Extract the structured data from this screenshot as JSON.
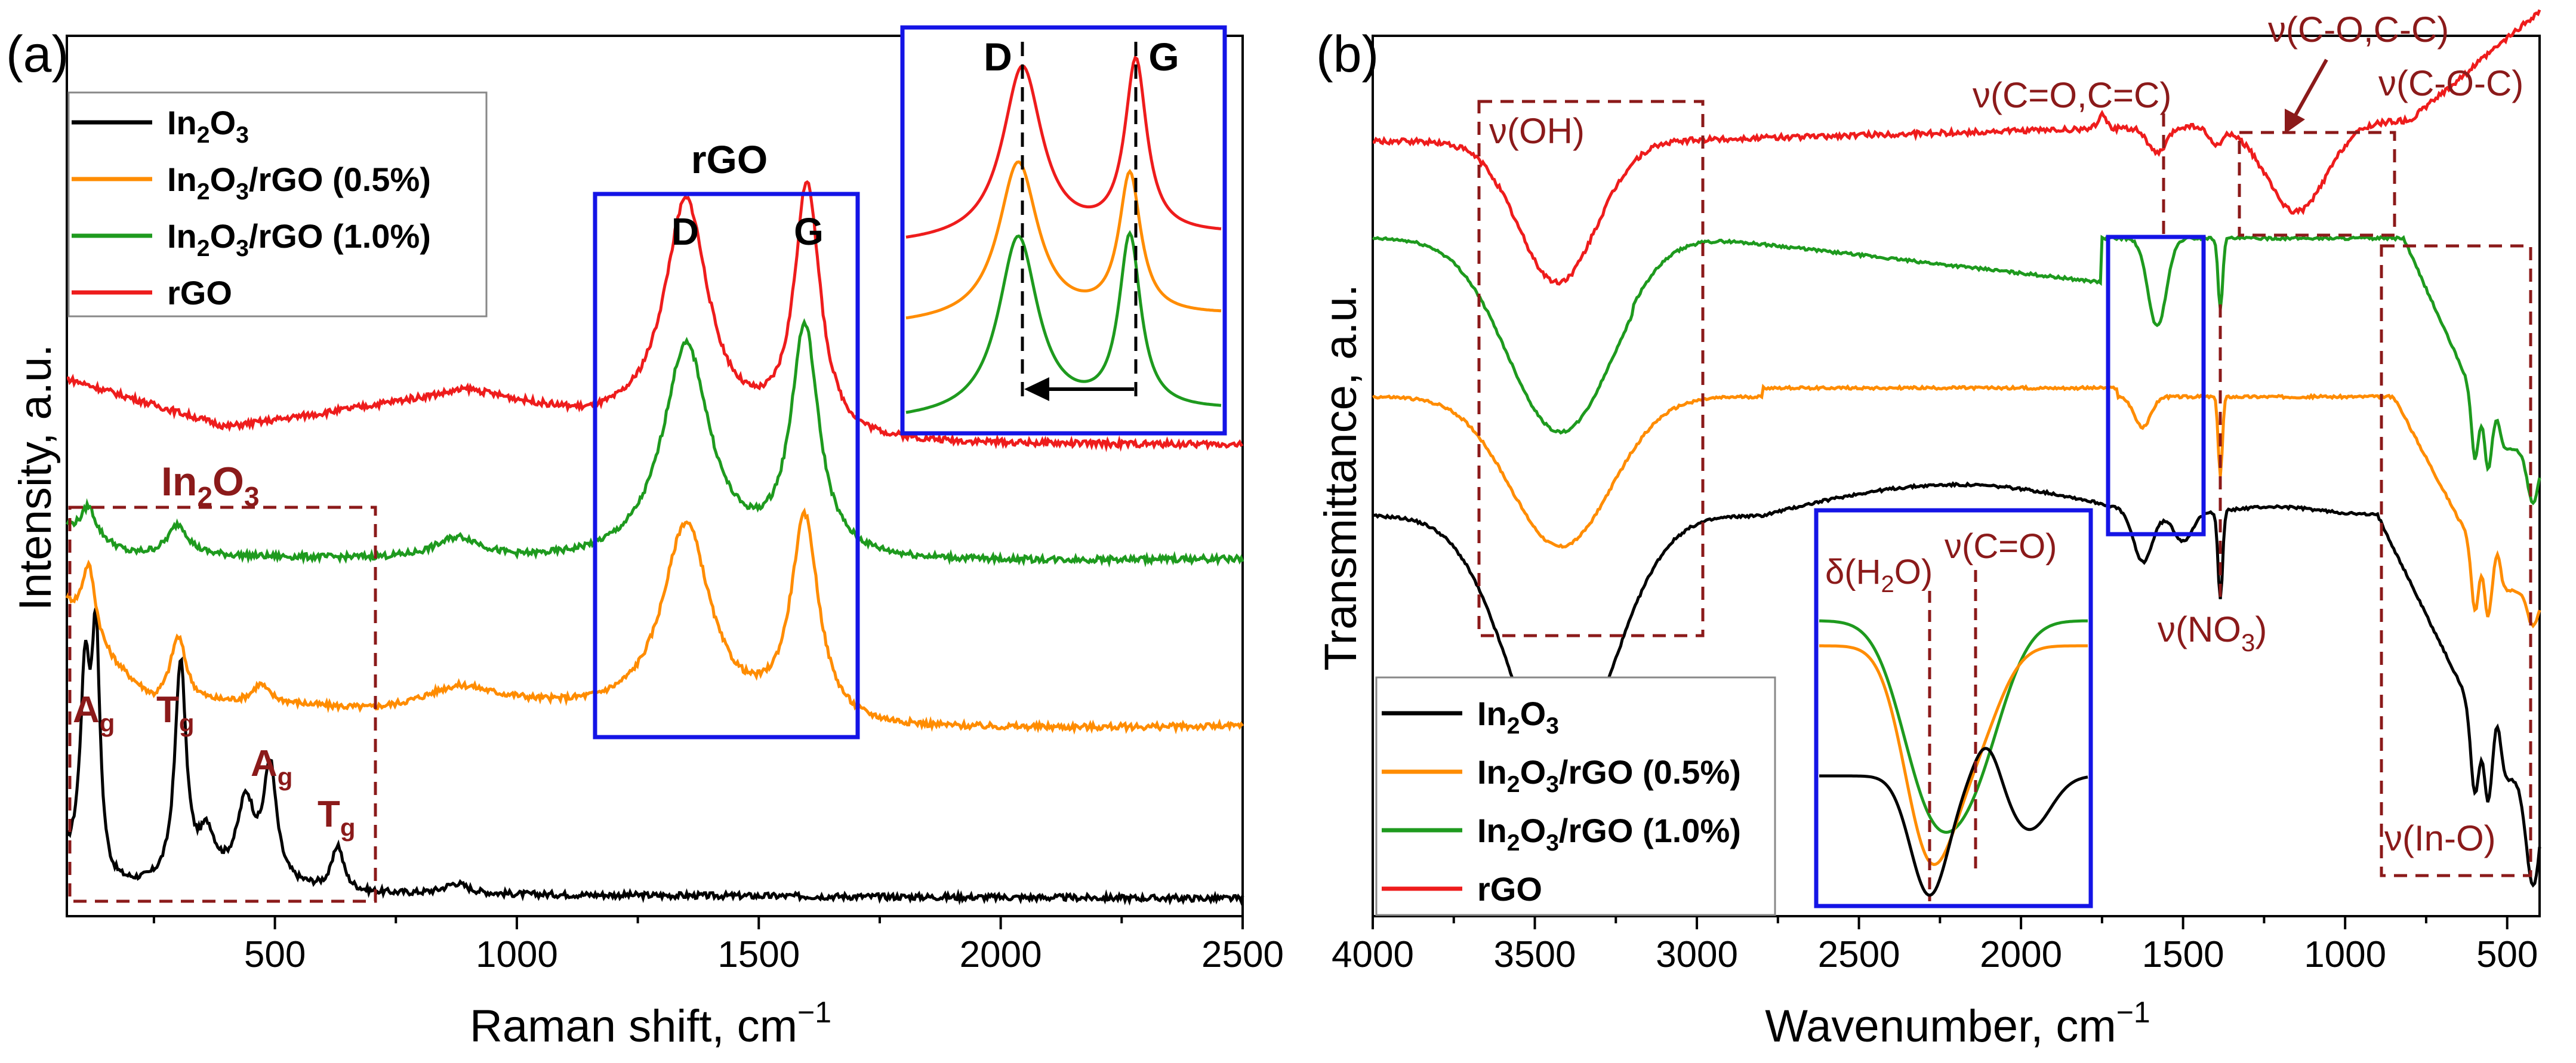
{
  "figure": {
    "colors": {
      "in2o3": "#000000",
      "rgo05": "#FF8C00",
      "rgo10": "#1E9A1E",
      "rgo": "#EE1C1C",
      "box": "#8B1A1A",
      "highlight": "#1414E6"
    }
  },
  "chart_data": [
    {
      "type": "line",
      "panel_label": "(a)",
      "xlabel": "Raman shift, cm",
      "xlabel_sup": "−1",
      "ylabel": "Intensity, a.u.",
      "xlim": [
        70,
        2500
      ],
      "ylim": [
        0,
        10
      ],
      "xticks": [
        500,
        1000,
        1500,
        2000,
        2500
      ],
      "xtick_labels": [
        "500",
        "1000",
        "1500",
        "2000",
        "2500"
      ],
      "legend": {
        "position": "top-left",
        "entries": [
          {
            "base": "In",
            "sub": "2",
            "base2": "O",
            "sub2": "3",
            "rest": ""
          },
          {
            "base": "In",
            "sub": "2",
            "base2": "O",
            "sub2": "3",
            "rest": "/rGO (0.5%)"
          },
          {
            "base": "In",
            "sub": "2",
            "base2": "O",
            "sub2": "3",
            "rest": "/rGO (1.0%)"
          },
          {
            "base": "rGO",
            "sub": "",
            "base2": "",
            "sub2": "",
            "rest": ""
          }
        ]
      },
      "series": [
        {
          "name": "In2O3",
          "color": "#000000",
          "baseline": 0.2,
          "background": [
            [
              70,
              0.6
            ],
            [
              160,
              0.3
            ],
            [
              400,
              0.35
            ],
            [
              700,
              0.25
            ],
            [
              2500,
              0.2
            ]
          ],
          "peaks": [
            [
              108,
              2.2,
              12
            ],
            [
              130,
              2.6,
              10
            ],
            [
              305,
              2.5,
              14
            ],
            [
              360,
              0.5,
              20
            ],
            [
              440,
              0.9,
              22
            ],
            [
              490,
              1.3,
              16
            ],
            [
              630,
              0.5,
              14
            ],
            [
              875,
              0.12,
              30
            ]
          ]
        },
        {
          "name": "In2O3/rGO (0.5%)",
          "color": "#FF8C00",
          "baseline": 2.1,
          "background": [
            [
              70,
              3.5
            ],
            [
              110,
              3.1
            ],
            [
              250,
              2.4
            ],
            [
              500,
              2.4
            ],
            [
              700,
              2.3
            ],
            [
              1000,
              2.35
            ],
            [
              1700,
              2.1
            ],
            [
              2500,
              2.15
            ]
          ],
          "peaks": [
            [
              115,
              0.9,
              18
            ],
            [
              300,
              0.75,
              20
            ],
            [
              470,
              0.2,
              20
            ],
            [
              880,
              0.25,
              90
            ],
            [
              1350,
              2.2,
              60
            ],
            [
              1595,
              2.3,
              35
            ]
          ]
        },
        {
          "name": "In2O3/rGO (1.0%)",
          "color": "#1E9A1E",
          "baseline": 4.1,
          "background": [
            [
              70,
              4.4
            ],
            [
              200,
              4.1
            ],
            [
              600,
              4.05
            ],
            [
              1000,
              4.0
            ],
            [
              1700,
              4.0
            ],
            [
              2500,
              4.05
            ]
          ],
          "peaks": [
            [
              115,
              0.35,
              18
            ],
            [
              300,
              0.35,
              25
            ],
            [
              880,
              0.25,
              60
            ],
            [
              1350,
              2.45,
              60
            ],
            [
              1595,
              2.6,
              35
            ]
          ]
        },
        {
          "name": "rGO",
          "color": "#EE1C1C",
          "baseline": 5.6,
          "background": [
            [
              70,
              6.1
            ],
            [
              400,
              5.55
            ],
            [
              600,
              5.7
            ],
            [
              900,
              5.95
            ],
            [
              1150,
              5.6
            ],
            [
              1700,
              5.35
            ],
            [
              2500,
              5.35
            ]
          ],
          "peaks": [
            [
              1350,
              2.6,
              55
            ],
            [
              1600,
              2.85,
              32
            ]
          ]
        }
      ],
      "annotations": {
        "box_in2o3_title": {
          "base": "In",
          "sub": "2",
          "base2": "O",
          "sub2": "3"
        },
        "peak_labels": [
          {
            "text": "A",
            "sub": "g"
          },
          {
            "text": "T",
            "sub": "g"
          },
          {
            "text": "A",
            "sub": "g"
          },
          {
            "text": "T",
            "sub": "g"
          }
        ],
        "rgo_box_title": "rGO",
        "rgo_box_d": "D",
        "rgo_box_g": "G",
        "inset_d": "D",
        "inset_g": "G"
      }
    },
    {
      "type": "line",
      "panel_label": "(b)",
      "xlabel": "Wavenumber, cm",
      "xlabel_sup": "−1",
      "ylabel": "Transmittance, a.u.",
      "xlim": [
        4000,
        400
      ],
      "ylim": [
        0,
        10
      ],
      "xticks": [
        4000,
        3500,
        3000,
        2500,
        2000,
        1500,
        1000,
        500
      ],
      "xtick_labels": [
        "4000",
        "3500",
        "3000",
        "2500",
        "2000",
        "1500",
        "1000",
        "500"
      ],
      "legend": {
        "position": "bottom-left",
        "entries": [
          {
            "base": "In",
            "sub": "2",
            "base2": "O",
            "sub2": "3",
            "rest": ""
          },
          {
            "base": "In",
            "sub": "2",
            "base2": "O",
            "sub2": "3",
            "rest": "/rGO (0.5%)"
          },
          {
            "base": "In",
            "sub": "2",
            "base2": "O",
            "sub2": "3",
            "rest": "/rGO (1.0%)"
          },
          {
            "base": "rGO",
            "sub": "",
            "base2": "",
            "sub2": "",
            "rest": ""
          }
        ]
      },
      "series": [
        {
          "name": "In2O3",
          "color": "#000000",
          "baseline": 4.6
        },
        {
          "name": "In2O3/rGO (0.5%)",
          "color": "#FF8C00",
          "baseline": 5.9
        },
        {
          "name": "In2O3/rGO (1.0%)",
          "color": "#1E9A1E",
          "baseline": 7.7
        },
        {
          "name": "rGO",
          "color": "#EE1C1C",
          "baseline": 8.8
        }
      ],
      "annotations": {
        "oh": "ν(OH)",
        "co_cc": "ν(C=O,C=C)",
        "coc_top": "ν(C-O,C-C)",
        "coc": "ν(C-O-C)",
        "no3_base": "ν(NO",
        "no3_sub": "3",
        "no3_end": ")",
        "ino": "ν(In-O)",
        "inset_dh2o_base": "δ(H",
        "inset_dh2o_sub": "2",
        "inset_dh2o_end": "O)",
        "inset_vco": "ν(C=O)"
      }
    }
  ]
}
